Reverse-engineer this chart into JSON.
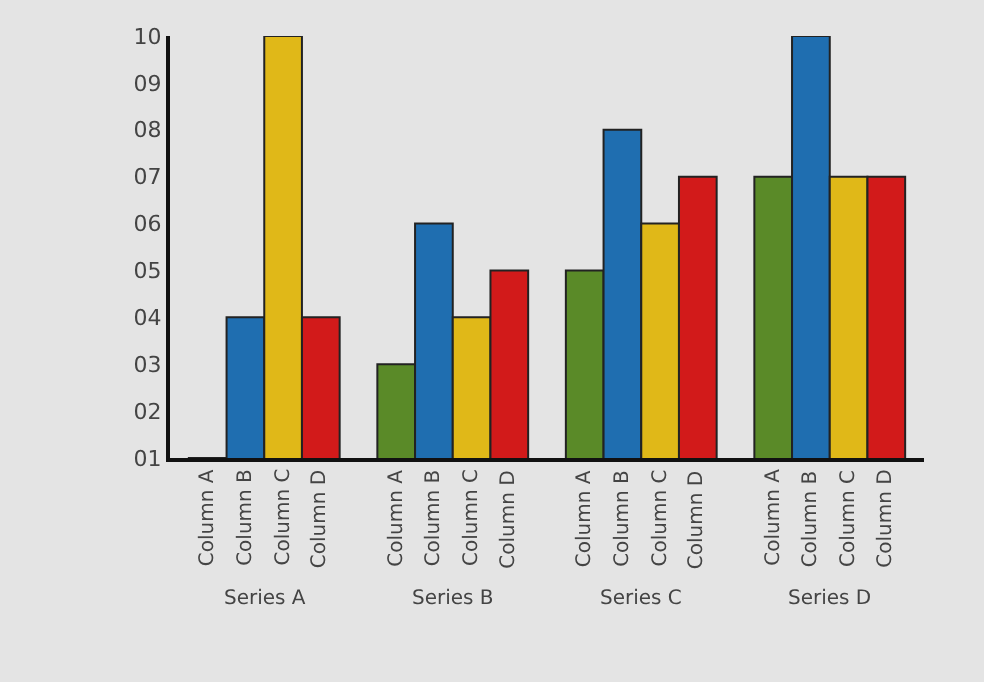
{
  "chart_data": {
    "type": "bar",
    "categories": [
      "Series A",
      "Series B",
      "Series C",
      "Series D"
    ],
    "series": [
      {
        "name": "Column A",
        "color": "#5a8a28",
        "values": [
          1,
          3,
          5,
          7
        ]
      },
      {
        "name": "Column B",
        "color": "#1f6eb0",
        "values": [
          4,
          6,
          8,
          10
        ]
      },
      {
        "name": "Column C",
        "color": "#e0b818",
        "values": [
          10,
          4,
          6,
          7
        ]
      },
      {
        "name": "Column D",
        "color": "#d21a1a",
        "values": [
          4,
          5,
          7,
          7
        ]
      }
    ],
    "ylim": [
      1,
      10
    ],
    "yticks": [
      {
        "value": 1,
        "label": "01"
      },
      {
        "value": 2,
        "label": "02"
      },
      {
        "value": 3,
        "label": "03"
      },
      {
        "value": 4,
        "label": "04"
      },
      {
        "value": 5,
        "label": "05"
      },
      {
        "value": 6,
        "label": "06"
      },
      {
        "value": 7,
        "label": "07"
      },
      {
        "value": 8,
        "label": "08"
      },
      {
        "value": 9,
        "label": "09"
      },
      {
        "value": 10,
        "label": "10"
      }
    ],
    "grid": false,
    "legend": false
  }
}
